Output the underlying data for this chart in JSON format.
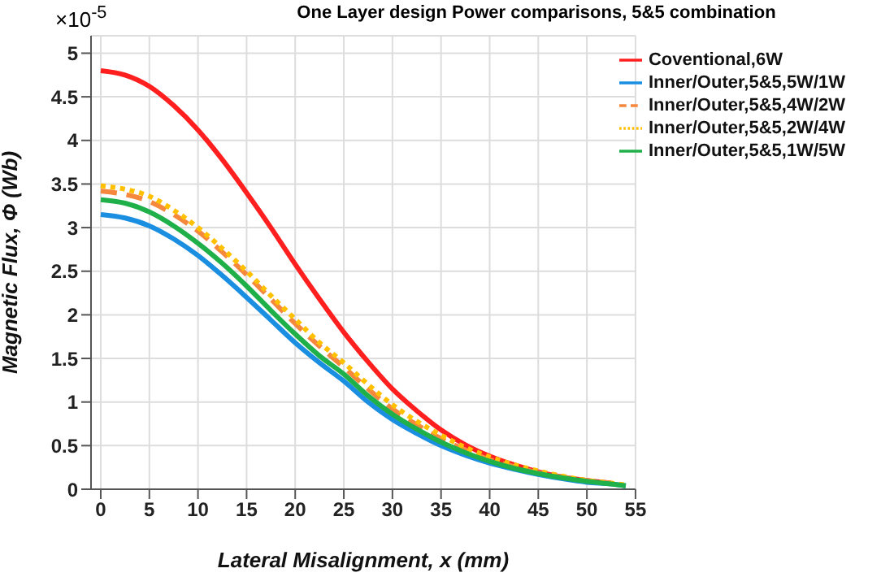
{
  "chart_data": {
    "type": "line",
    "title": "One Layer design Power comparisons, 5&5 combination",
    "xlabel": "Lateral Misalignment, x (mm)",
    "ylabel": "Magnetic Flux, Φ (Wb)",
    "annotations": [
      "×10$^{-5}$"
    ],
    "x": [
      0,
      2.5,
      5,
      7.5,
      10,
      12.5,
      15,
      17.5,
      20,
      22.5,
      25,
      27.5,
      30,
      32.5,
      35,
      37.5,
      40,
      42.5,
      45,
      47.5,
      50,
      52.5,
      54
    ],
    "series": [
      {
        "name": "Coventional,6W",
        "color": "#ff1f1f",
        "line_style": "solid",
        "values": [
          4.8,
          4.75,
          4.62,
          4.4,
          4.12,
          3.78,
          3.4,
          3.0,
          2.58,
          2.18,
          1.8,
          1.46,
          1.15,
          0.9,
          0.68,
          0.51,
          0.38,
          0.28,
          0.2,
          0.14,
          0.1,
          0.07,
          null
        ]
      },
      {
        "name": "Inner/Outer,5&5,5W/1W",
        "color": "#1a8ee0",
        "line_style": "solid",
        "values": [
          3.15,
          3.11,
          3.02,
          2.87,
          2.68,
          2.45,
          2.2,
          1.94,
          1.68,
          1.45,
          1.24,
          1.0,
          0.8,
          0.64,
          0.5,
          0.39,
          0.3,
          0.23,
          0.17,
          0.12,
          0.08,
          0.06,
          0.04
        ]
      },
      {
        "name": "Inner/Outer,5&5,4W/2W",
        "color": "#f5883c",
        "line_style": "dashed",
        "values": [
          3.42,
          3.38,
          3.3,
          3.15,
          2.96,
          2.72,
          2.46,
          2.18,
          1.9,
          1.64,
          1.4,
          1.15,
          0.92,
          0.74,
          0.58,
          0.45,
          0.34,
          0.26,
          0.19,
          0.14,
          0.1,
          0.07,
          null
        ]
      },
      {
        "name": "Inner/Outer,5&5,2W/4W",
        "color": "#ffc000",
        "line_style": "dotted",
        "values": [
          3.48,
          3.44,
          3.36,
          3.2,
          3.0,
          2.76,
          2.5,
          2.22,
          1.95,
          1.68,
          1.45,
          1.2,
          0.97,
          0.78,
          0.62,
          0.48,
          0.37,
          0.28,
          0.21,
          0.15,
          0.1,
          0.07,
          0.05
        ]
      },
      {
        "name": "Inner/Outer,5&5,1W/5W",
        "color": "#1fb04a",
        "line_style": "solid",
        "values": [
          3.32,
          3.28,
          3.18,
          3.02,
          2.82,
          2.59,
          2.33,
          2.05,
          1.78,
          1.53,
          1.32,
          1.07,
          0.86,
          0.69,
          0.54,
          0.42,
          0.32,
          0.24,
          0.18,
          0.13,
          0.09,
          0.06,
          0.04
        ]
      }
    ],
    "xlim": [
      -1,
      55
    ],
    "xticks": [
      0,
      5,
      10,
      15,
      20,
      25,
      30,
      35,
      40,
      45,
      50,
      55
    ],
    "ylim": [
      0,
      5.2
    ],
    "yticks": [
      0,
      0.5,
      1,
      1.5,
      2,
      2.5,
      3,
      3.5,
      4,
      4.5,
      5
    ],
    "grid": true,
    "legend": "top right",
    "marker": "none"
  }
}
